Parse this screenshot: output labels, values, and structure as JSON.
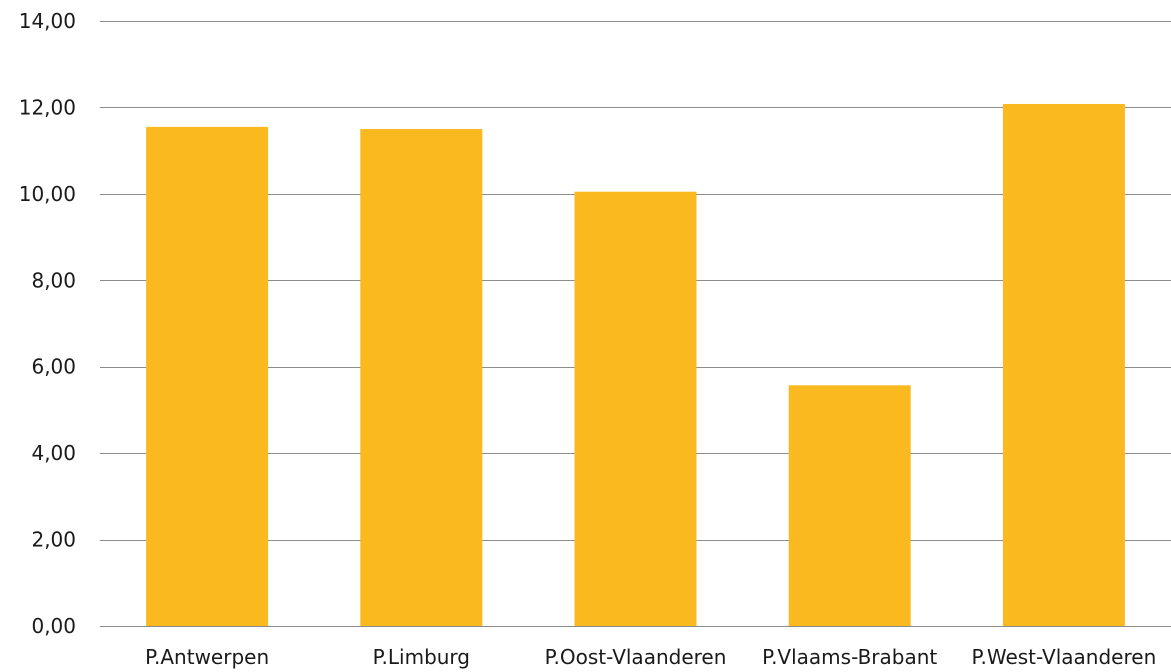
{
  "chart_data": {
    "type": "bar",
    "categories": [
      "P.Antwerpen",
      "P.Limburg",
      "P.Oost-Vlaanderen",
      "P.Vlaams-Brabant",
      "P.West-Vlaanderen"
    ],
    "values": [
      11.55,
      11.5,
      10.05,
      5.57,
      12.08
    ],
    "ylim": [
      0,
      14
    ],
    "yticks": [
      "0,00",
      "2,00",
      "4,00",
      "6,00",
      "8,00",
      "10,00",
      "12,00",
      "14,00"
    ],
    "ytick_values": [
      0,
      2,
      4,
      6,
      8,
      10,
      12,
      14
    ],
    "bar_color": "#F9B91F",
    "grid": true,
    "legend": "none"
  }
}
